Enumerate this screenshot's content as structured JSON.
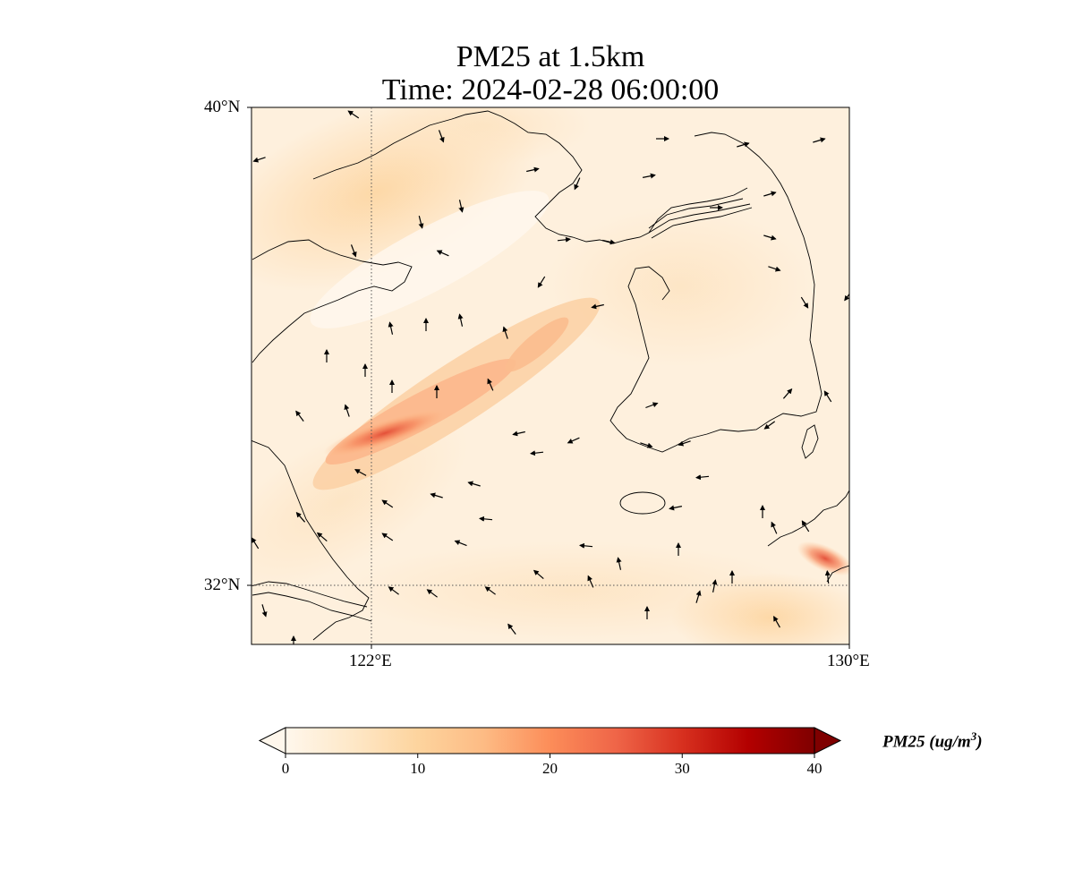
{
  "title": {
    "line1": "PM25 at 1.5km",
    "line2": "Time: 2024-02-28 06:00:00"
  },
  "map_axes": {
    "lat_labels": [
      "40°N",
      "32°N"
    ],
    "lon_labels": [
      "122°E",
      "130°E"
    ],
    "lat_range": [
      31,
      40
    ],
    "lon_range": [
      120,
      130
    ],
    "gridlines": {
      "lat": [
        32
      ],
      "lon": [
        122
      ],
      "style": "dotted"
    }
  },
  "colorbar": {
    "label_text": "PM25 (ug/m",
    "label_superscript": "3",
    "label_close": ")",
    "ticks": [
      {
        "value": 0,
        "text": "0"
      },
      {
        "value": 10,
        "text": "10"
      },
      {
        "value": 20,
        "text": "20"
      },
      {
        "value": 30,
        "text": "30"
      },
      {
        "value": 40,
        "text": "40"
      }
    ],
    "range": [
      0,
      40
    ],
    "extend": "both",
    "colormap": "OrRd",
    "colors": [
      "#fff7ec",
      "#fee8c8",
      "#fdd49e",
      "#fdbb84",
      "#fc8d59",
      "#ef6548",
      "#d7301f",
      "#b30000",
      "#7f0000"
    ]
  },
  "chart_data": {
    "type": "heatmap",
    "field": "PM25",
    "units": "ug/m3",
    "level": "1.5km",
    "plumes": [
      {
        "name": "narrow band",
        "from": [
          121.4,
          33.6
        ],
        "to": [
          125.1,
          35.6
        ],
        "peak": 24
      },
      {
        "name": "southeast patch",
        "from": [
          128.7,
          32.6
        ],
        "to": [
          130.0,
          32.3
        ],
        "peak": 20
      },
      {
        "name": "northwest haze",
        "from": [
          120.2,
          38.2
        ],
        "to": [
          122.6,
          39.6
        ],
        "peak": 9
      }
    ],
    "wind_vectors": "dozens of black arrows show the wind field; northwesterly in the north, easterly in the south"
  }
}
